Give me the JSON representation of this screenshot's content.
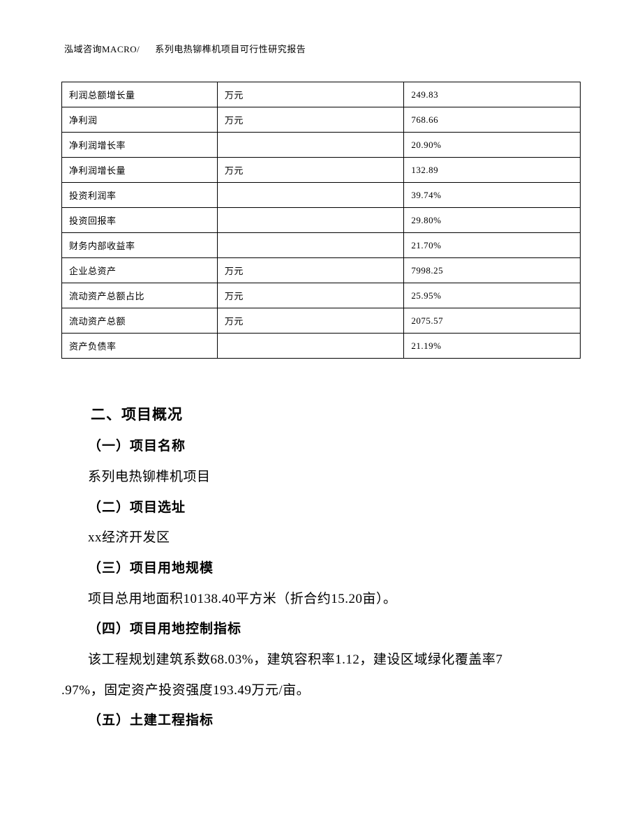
{
  "header": {
    "left": "泓域咨询MACRO/",
    "right": "系列电热铆榫机项目可行性研究报告"
  },
  "table": {
    "rows": [
      {
        "label": "利润总额增长量",
        "unit": "万元",
        "value": "249.83"
      },
      {
        "label": "净利润",
        "unit": "万元",
        "value": "768.66"
      },
      {
        "label": "净利润增长率",
        "unit": "",
        "value": "20.90%"
      },
      {
        "label": "净利润增长量",
        "unit": "万元",
        "value": "132.89"
      },
      {
        "label": "投资利润率",
        "unit": "",
        "value": "39.74%"
      },
      {
        "label": "投资回报率",
        "unit": "",
        "value": "29.80%"
      },
      {
        "label": "财务内部收益率",
        "unit": "",
        "value": "21.70%"
      },
      {
        "label": "企业总资产",
        "unit": "万元",
        "value": "7998.25"
      },
      {
        "label": "流动资产总额占比",
        "unit": "万元",
        "value": "25.95%"
      },
      {
        "label": "流动资产总额",
        "unit": "万元",
        "value": "2075.57"
      },
      {
        "label": "资产负债率",
        "unit": "",
        "value": "21.19%"
      }
    ]
  },
  "sections": {
    "h2": "二、项目概况",
    "s1_h": "（一）项目名称",
    "s1_p": "系列电热铆榫机项目",
    "s2_h": "（二）项目选址",
    "s2_p": "xx经济开发区",
    "s3_h": "（三）项目用地规模",
    "s3_p": "项目总用地面积10138.40平方米（折合约15.20亩）。",
    "s4_h": "（四）项目用地控制指标",
    "s4_p1": "该工程规划建筑系数68.03%，建筑容积率1.12，建设区域绿化覆盖率7",
    "s4_p2": ".97%，固定资产投资强度193.49万元/亩。",
    "s5_h": "（五）土建工程指标"
  }
}
